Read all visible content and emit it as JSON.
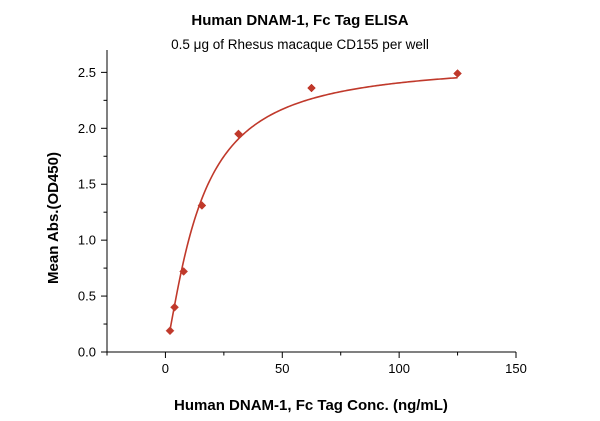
{
  "chart_data": {
    "type": "scatter",
    "title": "Human DNAM-1, Fc Tag ELISA",
    "subtitle": "0.5 μg of Rhesus macaque CD155 per well",
    "xlabel": "Human DNAM-1, Fc Tag Conc. (ng/mL)",
    "ylabel": "Mean Abs.(OD450)",
    "xlim": [
      -25,
      150
    ],
    "ylim": [
      0,
      2.7
    ],
    "xticks": [
      0,
      50,
      100,
      150
    ],
    "xtick_labels": [
      "0",
      "50",
      "100",
      "150"
    ],
    "yticks": [
      0.0,
      0.5,
      1.0,
      1.5,
      2.0,
      2.5
    ],
    "ytick_labels": [
      "0.0",
      "0.5",
      "1.0",
      "1.5",
      "2.0",
      "2.5"
    ],
    "grid": false,
    "color": "#c0392b",
    "series": [
      {
        "x": [
          1.95,
          3.9,
          7.8,
          15.6,
          31.25,
          62.5,
          125
        ],
        "y": [
          0.19,
          0.4,
          0.72,
          1.31,
          1.95,
          2.36,
          2.49
        ]
      }
    ],
    "fit": {
      "type": "4PL",
      "bottom": 0.02,
      "top": 2.6,
      "ec50": 14.5,
      "hill": 1.3
    }
  }
}
